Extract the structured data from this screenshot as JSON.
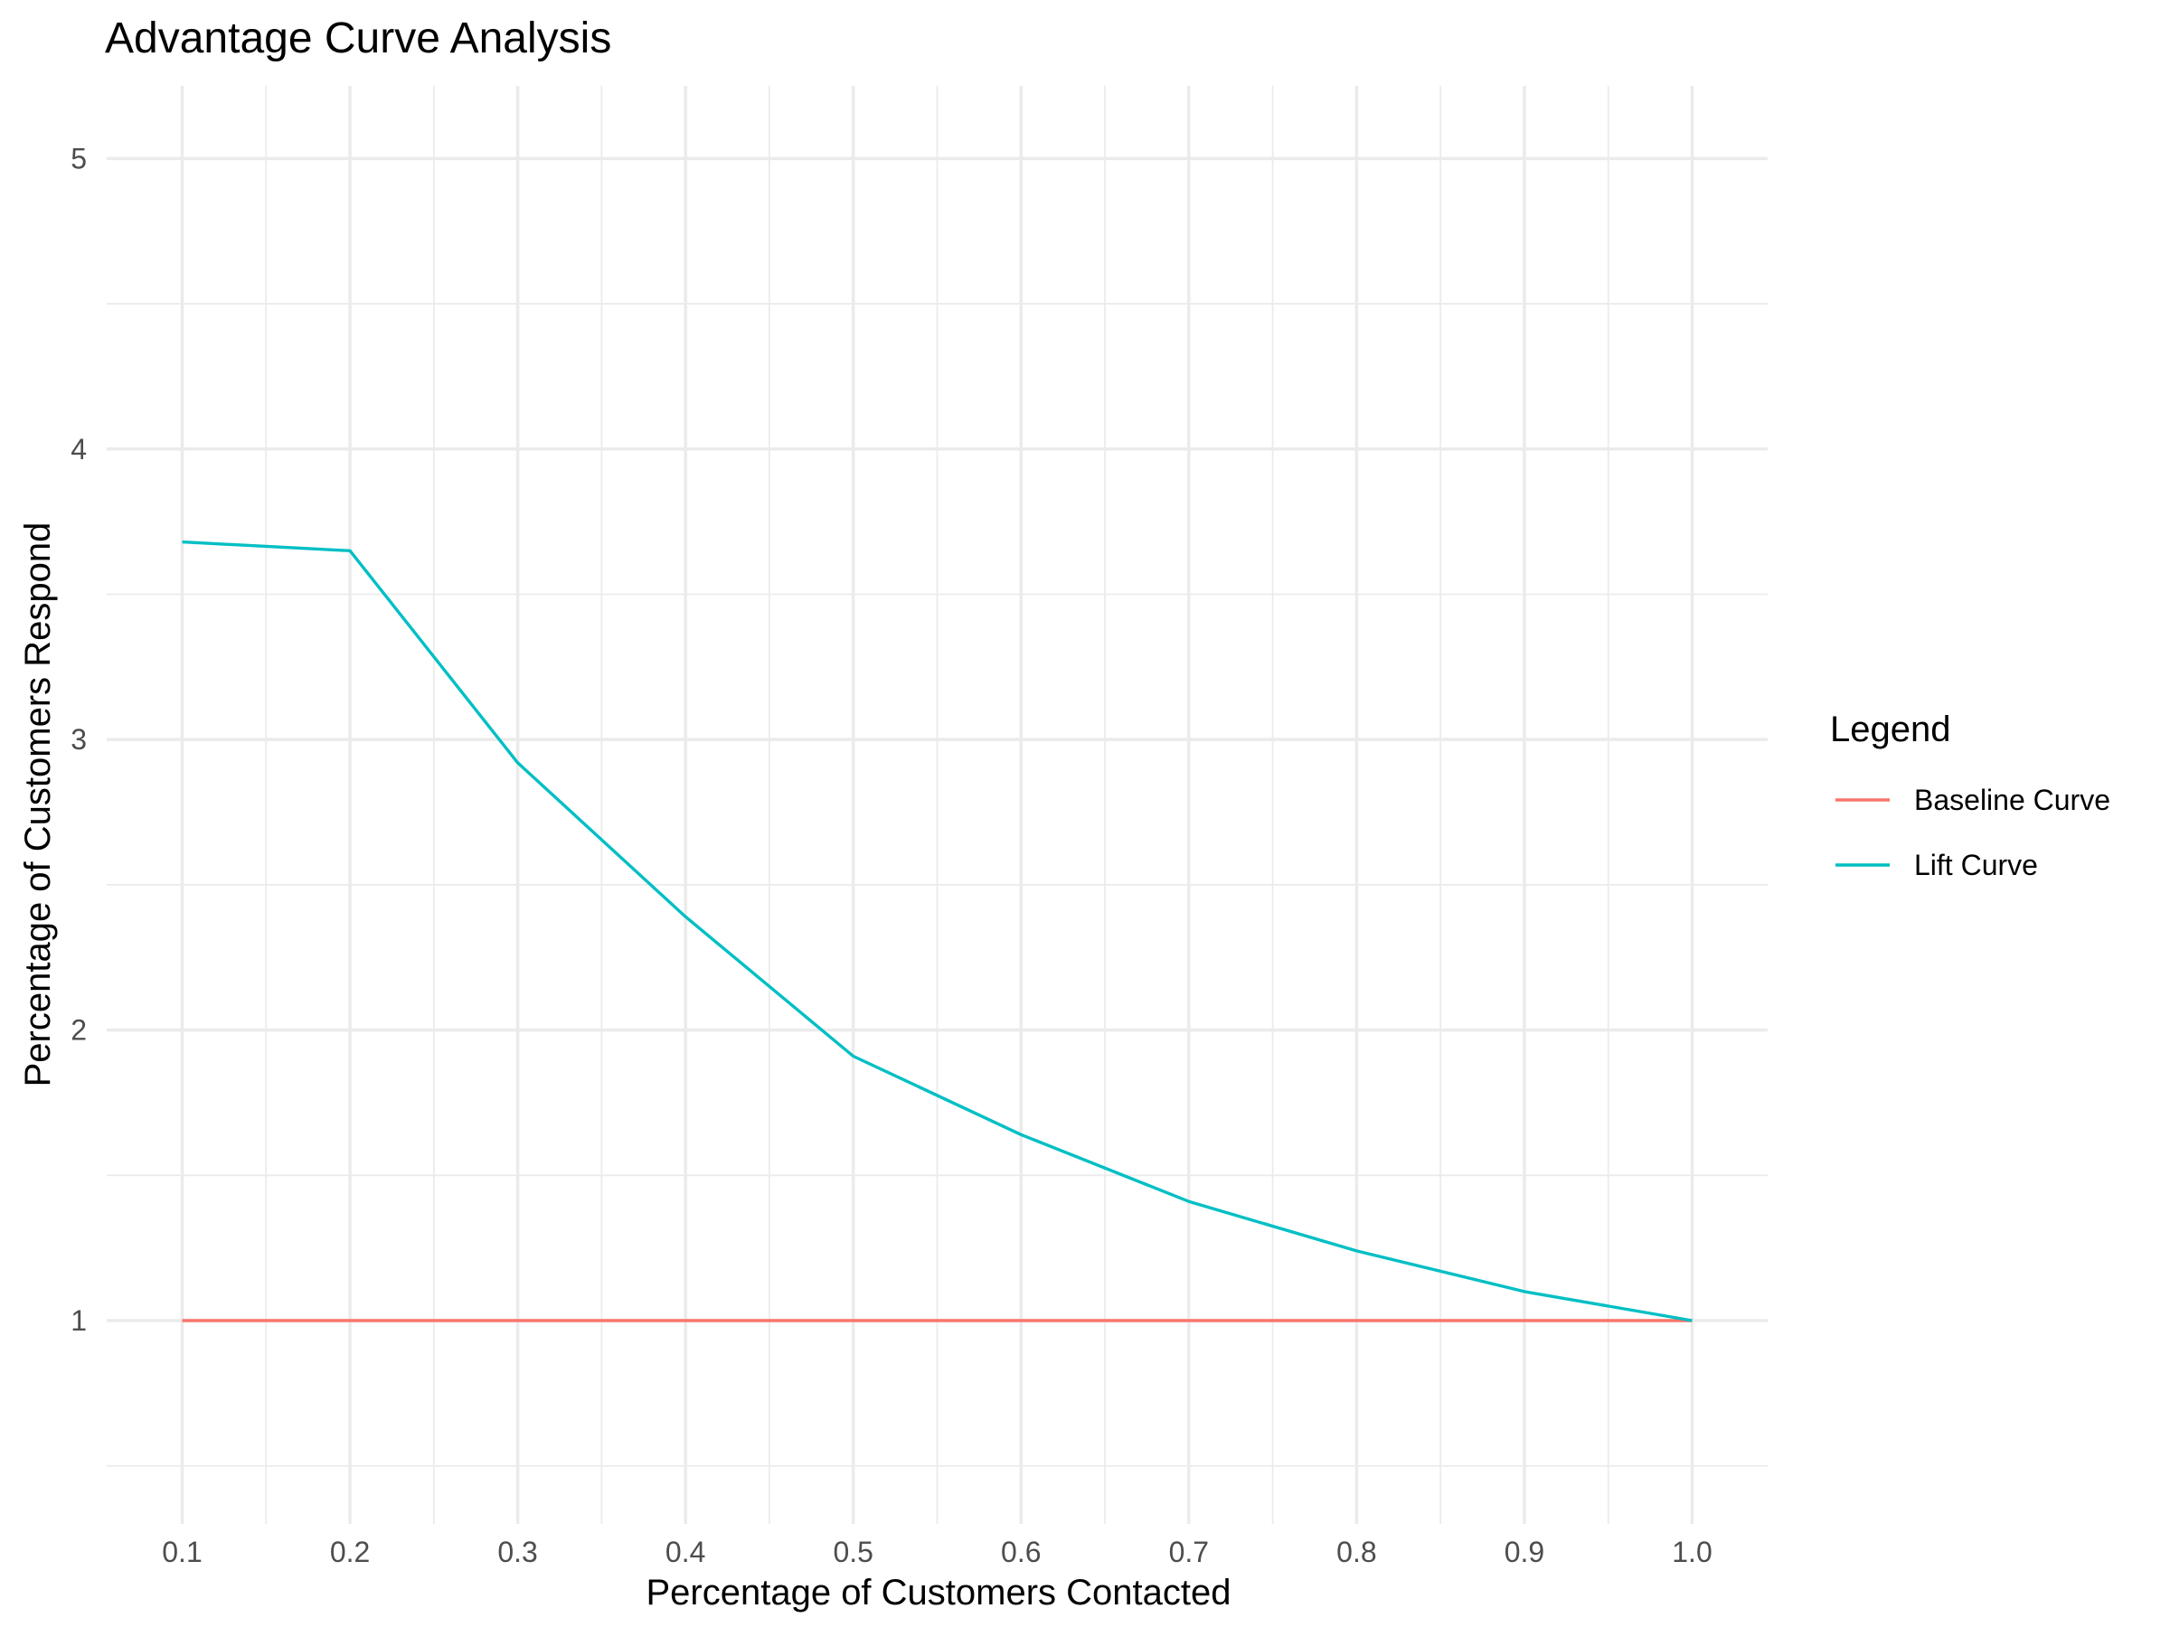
{
  "chart_data": {
    "type": "line",
    "title": "Advantage Curve Analysis",
    "xlabel": "Percentage of Customers Contacted",
    "ylabel": "Percentage of Customers Respond",
    "x": [
      0.1,
      0.2,
      0.3,
      0.4,
      0.5,
      0.6,
      0.7,
      0.8,
      0.9,
      1.0
    ],
    "x_tick_labels": [
      "0.1",
      "0.2",
      "0.3",
      "0.4",
      "0.5",
      "0.6",
      "0.7",
      "0.8",
      "0.9",
      "1.0"
    ],
    "y_ticks": [
      1,
      2,
      3,
      4,
      5
    ],
    "y_tick_labels": [
      "1",
      "2",
      "3",
      "4",
      "5"
    ],
    "xlim": [
      0.055,
      1.045
    ],
    "ylim": [
      0.3,
      5.25
    ],
    "grid": true,
    "legend": {
      "title": "Legend",
      "position": "right"
    },
    "series": [
      {
        "name": "Baseline Curve",
        "color": "#F8766D",
        "values": [
          1,
          1,
          1,
          1,
          1,
          1,
          1,
          1,
          1,
          1
        ]
      },
      {
        "name": "Lift Curve",
        "color": "#00BFC4",
        "values": [
          3.68,
          3.65,
          2.92,
          2.39,
          1.91,
          1.64,
          1.41,
          1.24,
          1.1,
          1.0
        ]
      }
    ]
  }
}
